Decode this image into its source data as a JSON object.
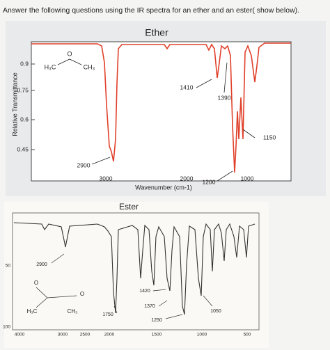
{
  "question": "Answer the following questions using the IR spectra for an ether and an ester( show below).",
  "ether": {
    "title": "Ether",
    "y_axis_label": "Relative Transmittance",
    "x_axis_label": "Wavenumber (cm-1)",
    "y_ticks": [
      "0.9",
      "0.75",
      "0.6",
      "0.45"
    ],
    "x_ticks": [
      "3000",
      "2000",
      "1000"
    ],
    "annotations": [
      "2900",
      "1410",
      "1390",
      "1200",
      "1150"
    ],
    "molecule": [
      "H₃C",
      "O",
      "CH₃"
    ]
  },
  "ester": {
    "title": "Ester",
    "y_ticks": [
      "50",
      "100"
    ],
    "x_ticks": [
      "4000",
      "3000",
      "2500",
      "2000",
      "1500",
      "1000",
      "500"
    ],
    "annotations": [
      "2900",
      "1750",
      "1420",
      "1370",
      "1250",
      "1050"
    ],
    "molecule": [
      "O",
      "O",
      "H₃C",
      "CH₃"
    ]
  }
}
